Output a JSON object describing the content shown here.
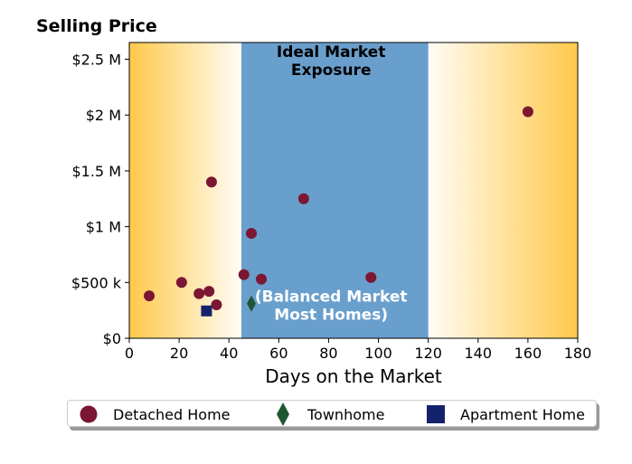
{
  "chart_data": {
    "type": "scatter",
    "title": "Selling Price",
    "xlabel": "Days on the Market",
    "ylabel": "",
    "xlim": [
      0,
      180
    ],
    "ylim": [
      0,
      2650000
    ],
    "x_ticks": [
      0,
      20,
      40,
      60,
      80,
      100,
      120,
      140,
      160,
      180
    ],
    "x_tick_labels": [
      "0",
      "20",
      "40",
      "60",
      "80",
      "100",
      "120",
      "140",
      "160",
      "180"
    ],
    "y_ticks": [
      0,
      500000,
      1000000,
      1500000,
      2000000,
      2500000
    ],
    "y_tick_labels": [
      "$0",
      "$500 k",
      "$1 M",
      "$1.5 M",
      "$2 M",
      "$2.5 M"
    ],
    "grid": false,
    "background_zones": [
      {
        "from": 0,
        "to": 45,
        "style": "gradient-orange-fade-right",
        "color": "#FFC94A"
      },
      {
        "from": 45,
        "to": 120,
        "style": "solid",
        "color": "#699FCC"
      },
      {
        "from": 120,
        "to": 180,
        "style": "gradient-orange-fade-left",
        "color": "#FFC94A"
      }
    ],
    "annotations": [
      {
        "text_lines": [
          "Ideal Market",
          "Exposure"
        ],
        "x": 81,
        "y": 2520000,
        "color": "#000000",
        "weight": "bold"
      },
      {
        "text_lines": [
          "(Balanced Market",
          "Most Homes)"
        ],
        "x": 81,
        "y": 330000,
        "color": "#ffffff",
        "weight": "bold"
      }
    ],
    "series": [
      {
        "name": "Detached Home",
        "marker": "circle",
        "color": "#7B1633",
        "points": [
          {
            "x": 8,
            "y": 380000
          },
          {
            "x": 21,
            "y": 500000
          },
          {
            "x": 28,
            "y": 400000
          },
          {
            "x": 32,
            "y": 420000
          },
          {
            "x": 33,
            "y": 1400000
          },
          {
            "x": 35,
            "y": 300000
          },
          {
            "x": 46,
            "y": 570000
          },
          {
            "x": 49,
            "y": 940000
          },
          {
            "x": 53,
            "y": 530000
          },
          {
            "x": 70,
            "y": 1250000
          },
          {
            "x": 97,
            "y": 545000
          },
          {
            "x": 160,
            "y": 2030000
          }
        ]
      },
      {
        "name": "Townhome",
        "marker": "diamond",
        "color": "#1E5631",
        "points": [
          {
            "x": 49,
            "y": 310000
          }
        ]
      },
      {
        "name": "Apartment Home",
        "marker": "square",
        "color": "#14226B",
        "points": [
          {
            "x": 31,
            "y": 245000
          }
        ]
      }
    ],
    "legend_position": "bottom"
  }
}
